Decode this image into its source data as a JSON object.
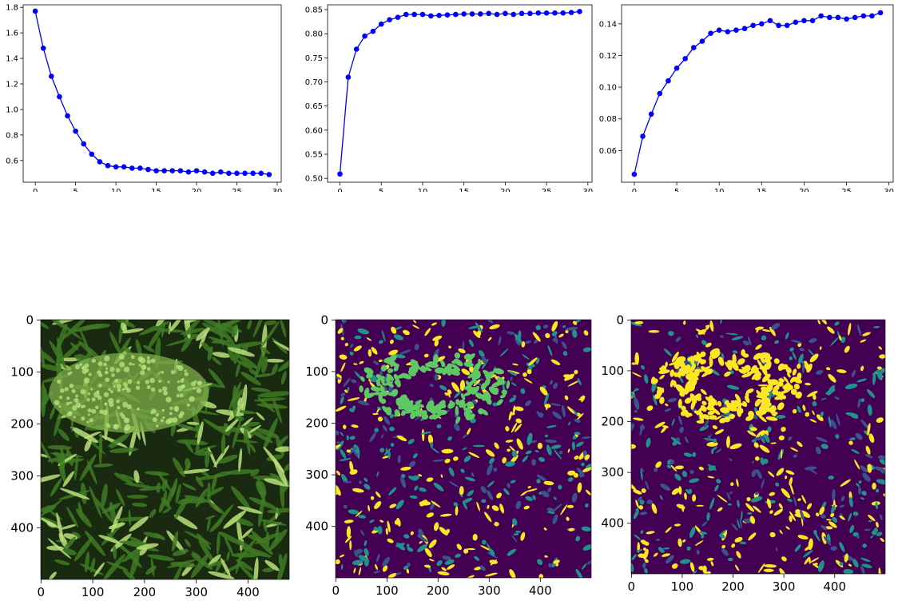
{
  "chart_data": [
    {
      "type": "line",
      "title": "",
      "xlabel": "",
      "ylabel": "",
      "xlim": [
        -1.5,
        30.5
      ],
      "ylim": [
        0.43,
        1.82
      ],
      "xticks": [
        0,
        5,
        10,
        15,
        20,
        25,
        30
      ],
      "yticks": [
        0.6,
        0.8,
        1.0,
        1.2,
        1.4,
        1.6,
        1.8
      ],
      "ytick_labels": [
        "0.6",
        "0.8",
        "1.0",
        "1.2",
        "1.4",
        "1.6",
        "1.8"
      ],
      "grid": false,
      "color": "#0000ff",
      "series": [
        {
          "x": [
            0,
            1,
            2,
            3,
            4,
            5,
            6,
            7,
            8,
            9,
            10,
            11,
            12,
            13,
            14,
            15,
            16,
            17,
            18,
            19,
            20,
            21,
            22,
            23,
            24,
            25,
            26,
            27,
            28,
            29
          ],
          "values": [
            1.77,
            1.48,
            1.26,
            1.1,
            0.95,
            0.83,
            0.73,
            0.65,
            0.59,
            0.56,
            0.55,
            0.55,
            0.54,
            0.54,
            0.53,
            0.52,
            0.52,
            0.52,
            0.52,
            0.51,
            0.52,
            0.51,
            0.5,
            0.51,
            0.5,
            0.5,
            0.5,
            0.5,
            0.5,
            0.49
          ]
        }
      ]
    },
    {
      "type": "line",
      "title": "",
      "xlabel": "",
      "ylabel": "",
      "xlim": [
        -1.5,
        30.5
      ],
      "ylim": [
        0.492,
        0.86
      ],
      "xticks": [
        0,
        5,
        10,
        15,
        20,
        25,
        30
      ],
      "yticks": [
        0.5,
        0.55,
        0.6,
        0.65,
        0.7,
        0.75,
        0.8,
        0.85
      ],
      "ytick_labels": [
        "0.50",
        "0.55",
        "0.60",
        "0.65",
        "0.70",
        "0.75",
        "0.80",
        "0.85"
      ],
      "grid": false,
      "color": "#0000ff",
      "series": [
        {
          "x": [
            0,
            1,
            2,
            3,
            4,
            5,
            6,
            7,
            8,
            9,
            10,
            11,
            12,
            13,
            14,
            15,
            16,
            17,
            18,
            19,
            20,
            21,
            22,
            23,
            24,
            25,
            26,
            27,
            28,
            29
          ],
          "values": [
            0.509,
            0.71,
            0.768,
            0.795,
            0.805,
            0.82,
            0.829,
            0.834,
            0.84,
            0.84,
            0.84,
            0.837,
            0.838,
            0.839,
            0.84,
            0.841,
            0.841,
            0.841,
            0.842,
            0.84,
            0.842,
            0.84,
            0.842,
            0.842,
            0.843,
            0.843,
            0.843,
            0.843,
            0.844,
            0.846
          ]
        }
      ]
    },
    {
      "type": "line",
      "title": "",
      "xlabel": "",
      "ylabel": "",
      "xlim": [
        -1.5,
        30.5
      ],
      "ylim": [
        0.04,
        0.152
      ],
      "xticks": [
        0,
        5,
        10,
        15,
        20,
        25,
        30
      ],
      "yticks": [
        0.06,
        0.08,
        0.1,
        0.12,
        0.14
      ],
      "ytick_labels": [
        "0.06",
        "0.08",
        "0.10",
        "0.12",
        "0.14"
      ],
      "grid": false,
      "color": "#0000ff",
      "series": [
        {
          "x": [
            0,
            1,
            2,
            3,
            4,
            5,
            6,
            7,
            8,
            9,
            10,
            11,
            12,
            13,
            14,
            15,
            16,
            17,
            18,
            19,
            20,
            21,
            22,
            23,
            24,
            25,
            26,
            27,
            28,
            29
          ],
          "values": [
            0.045,
            0.069,
            0.083,
            0.096,
            0.104,
            0.112,
            0.118,
            0.125,
            0.129,
            0.134,
            0.136,
            0.135,
            0.136,
            0.137,
            0.139,
            0.14,
            0.142,
            0.139,
            0.139,
            0.141,
            0.142,
            0.142,
            0.145,
            0.144,
            0.144,
            0.143,
            0.144,
            0.145,
            0.145,
            0.147
          ]
        }
      ]
    }
  ],
  "images": [
    {
      "xticks": [
        0,
        100,
        200,
        300,
        400
      ],
      "yticks": [
        0,
        100,
        200,
        300,
        400
      ],
      "xlim": [
        -0.5,
        479.5
      ],
      "ylim": [
        -0.5,
        499.5
      ],
      "colormap": "green-tinted micrograph",
      "colors": {
        "background": "#1a2a10",
        "tissue": "#3f7a24",
        "highlight": "#b8e07a"
      }
    },
    {
      "xticks": [
        0,
        100,
        200,
        300,
        400
      ],
      "yticks": [
        0,
        100,
        200,
        300,
        400
      ],
      "xlim": [
        -0.5,
        499.5
      ],
      "ylim": [
        -0.5,
        499.5
      ],
      "colormap": "viridis",
      "colors": {
        "background": "#440154",
        "mid": "#21918c",
        "high": "#fde725",
        "green": "#5ec962"
      }
    },
    {
      "xticks": [
        0,
        100,
        200,
        300,
        400
      ],
      "yticks": [
        0,
        100,
        200,
        300,
        400
      ],
      "xlim": [
        -0.5,
        499.5
      ],
      "ylim": [
        -0.5,
        499.5
      ],
      "colormap": "viridis",
      "colors": {
        "background": "#440154",
        "mid": "#21918c",
        "high": "#fde725"
      }
    }
  ]
}
